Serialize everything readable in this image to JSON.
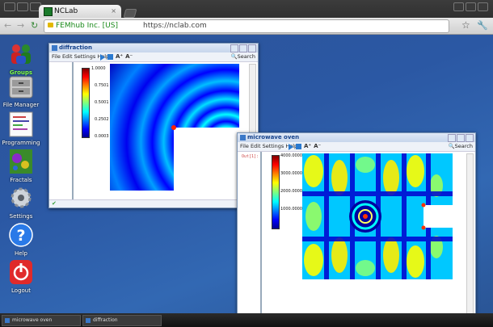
{
  "browser": {
    "tab_title": "NCLab",
    "tab_close": "×",
    "addr_org": "FEMhub Inc. [US]",
    "addr_url": "https://nclab.com",
    "back": "←",
    "forward": "→",
    "reload": "↻",
    "star": "☆",
    "wrench": "🔧"
  },
  "desktop_icons": [
    {
      "label": "Groups"
    },
    {
      "label": "File Manager"
    },
    {
      "label": "Programming"
    },
    {
      "label": "Fractals"
    },
    {
      "label": "Settings"
    },
    {
      "label": "Help"
    },
    {
      "label": "Logout"
    }
  ],
  "window1": {
    "title": "diffraction",
    "menu": "File  Edit  Settings  Help",
    "search": "Search",
    "ticks": [
      "1.0000",
      "0.7501",
      "0.5001",
      "0.2502",
      "0.0003"
    ],
    "ok": "✔"
  },
  "window2": {
    "title": "microwave oven",
    "menu": "File  Edit  Settings  Help",
    "search": "Search",
    "out_label": "Out[1]:",
    "ticks": [
      "4000.0000",
      "3000.0000",
      "2000.0000",
      "1000.0000"
    ],
    "ok": "✔"
  },
  "taskbar": {
    "task1": "microwave oven",
    "task2": "diffraction"
  },
  "colors": {
    "desktop": "#2b58a4",
    "accent": "#15428b"
  }
}
